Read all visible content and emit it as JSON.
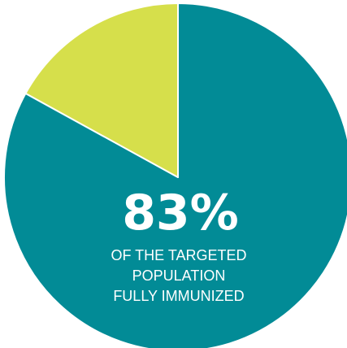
{
  "chart_data": {
    "type": "pie",
    "slices": [
      {
        "value": 83,
        "color": "#028b96"
      },
      {
        "value": 17,
        "color": "#d6df4b"
      }
    ],
    "start_angle": "12 o'clock",
    "direction": "clockwise",
    "slice_border_color": "#ffffff",
    "annotation": {
      "value_label": "83%",
      "caption_lines": [
        "OF THE TARGETED",
        "POPULATION",
        "FULLY IMMUNIZED"
      ]
    }
  }
}
